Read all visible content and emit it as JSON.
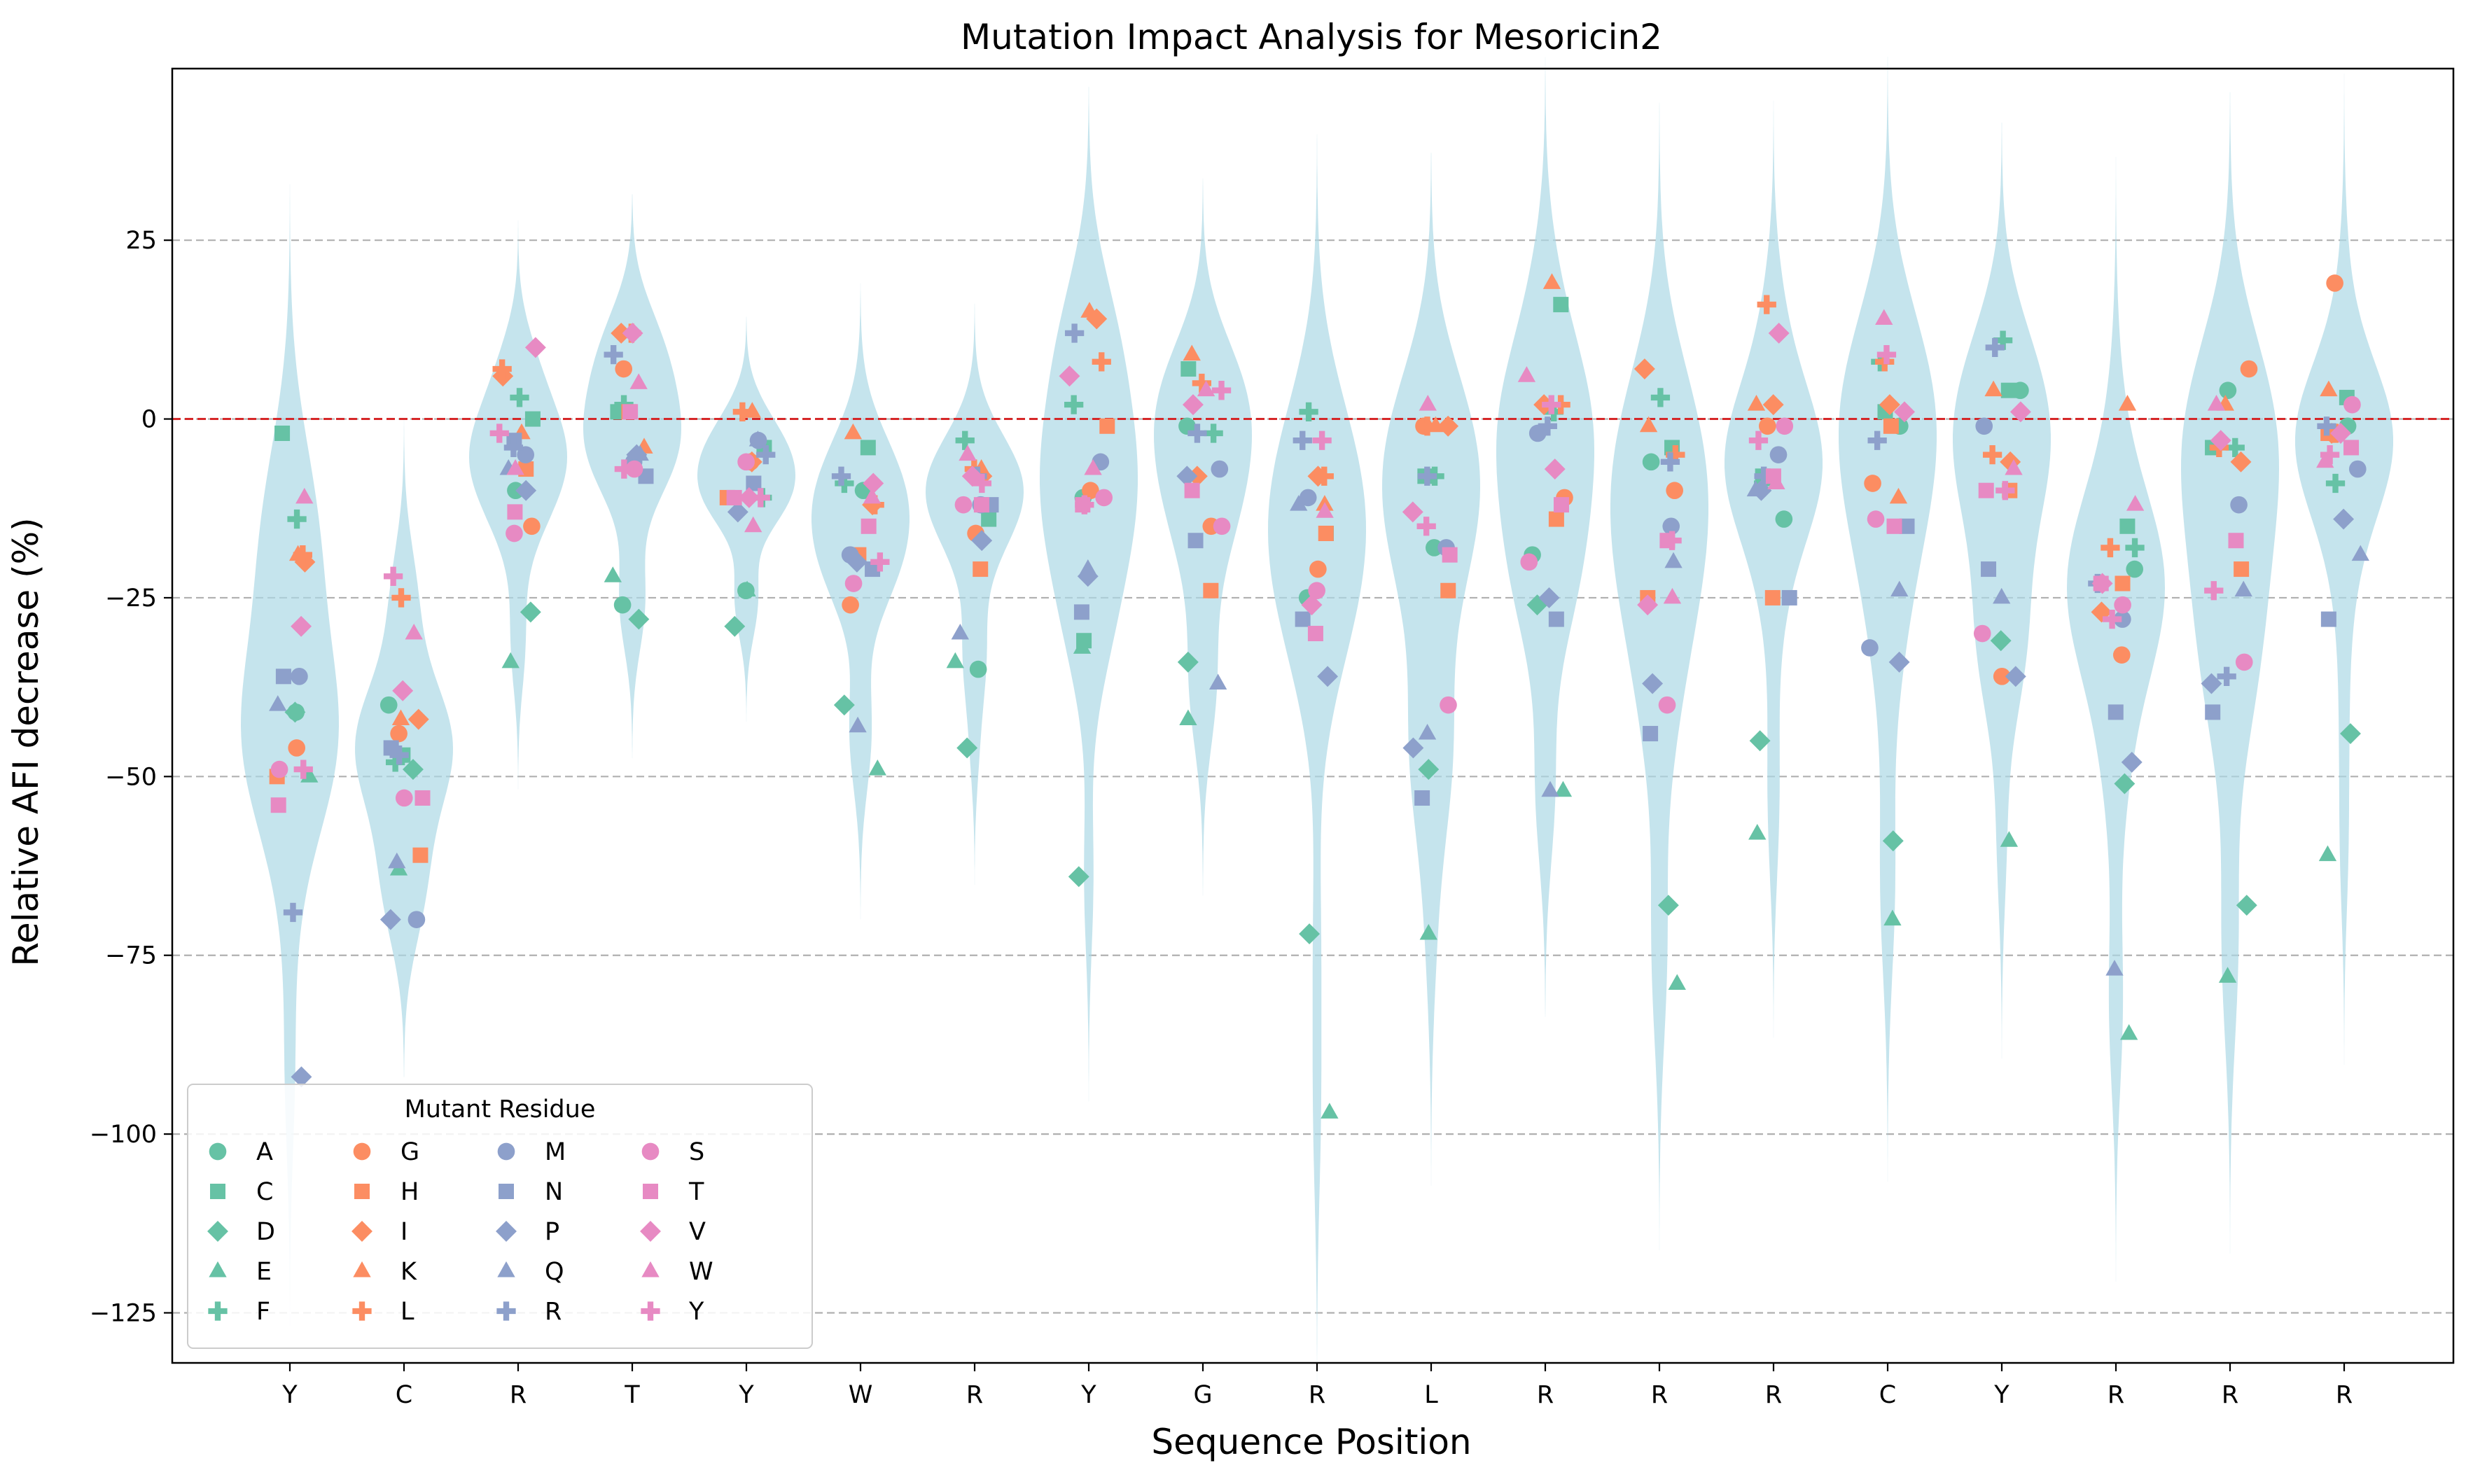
{
  "chart_data": {
    "type": "violin-strip",
    "title": "Mutation Impact Analysis for Mesoricin2",
    "xlabel": "Sequence Position",
    "ylabel": "Relative AFI decrease (%)",
    "ylim": [
      -132,
      49
    ],
    "yticks": [
      25,
      0,
      -25,
      -50,
      -75,
      -100,
      -125
    ],
    "ytick_labels": [
      "25",
      "0",
      "−25",
      "−50",
      "−75",
      "−100",
      "−125"
    ],
    "reference_line": {
      "y": 0,
      "color": "#d62728",
      "style": "dashed"
    },
    "grid": "horizontal dashed",
    "violin_color": "#add8e6",
    "positions": [
      "Y",
      "C",
      "R",
      "T",
      "Y",
      "W",
      "R",
      "Y",
      "G",
      "R",
      "L",
      "R",
      "R",
      "R",
      "C",
      "Y",
      "R",
      "R",
      "R"
    ],
    "residue_order": [
      "A",
      "C",
      "D",
      "E",
      "F",
      "G",
      "H",
      "I",
      "K",
      "L",
      "M",
      "N",
      "P",
      "Q",
      "R",
      "S",
      "T",
      "V",
      "W",
      "Y"
    ],
    "residue_styles": {
      "A": {
        "color": "#66c2a5",
        "marker": "circle"
      },
      "C": {
        "color": "#66c2a5",
        "marker": "square"
      },
      "D": {
        "color": "#66c2a5",
        "marker": "diamond"
      },
      "E": {
        "color": "#66c2a5",
        "marker": "triangle"
      },
      "F": {
        "color": "#66c2a5",
        "marker": "plus"
      },
      "G": {
        "color": "#fc8d62",
        "marker": "circle"
      },
      "H": {
        "color": "#fc8d62",
        "marker": "square"
      },
      "I": {
        "color": "#fc8d62",
        "marker": "diamond"
      },
      "K": {
        "color": "#fc8d62",
        "marker": "triangle"
      },
      "L": {
        "color": "#fc8d62",
        "marker": "plus"
      },
      "M": {
        "color": "#8da0cb",
        "marker": "circle"
      },
      "N": {
        "color": "#8da0cb",
        "marker": "square"
      },
      "P": {
        "color": "#8da0cb",
        "marker": "diamond"
      },
      "Q": {
        "color": "#8da0cb",
        "marker": "triangle"
      },
      "R": {
        "color": "#8da0cb",
        "marker": "plus"
      },
      "S": {
        "color": "#e78ac3",
        "marker": "circle"
      },
      "T": {
        "color": "#e78ac3",
        "marker": "square"
      },
      "V": {
        "color": "#e78ac3",
        "marker": "diamond"
      },
      "W": {
        "color": "#e78ac3",
        "marker": "triangle"
      },
      "Y": {
        "color": "#e78ac3",
        "marker": "plus"
      }
    },
    "values": [
      [
        -41,
        -2,
        -41,
        -50,
        -14,
        -46,
        -50,
        -20,
        -19,
        -19,
        -36,
        -36,
        -92,
        -40,
        -69,
        -49,
        -54,
        -29,
        -11,
        -49
      ],
      [
        -40,
        -47,
        -49,
        -63,
        -48,
        -44,
        -61,
        -42,
        -42,
        -25,
        -70,
        -46,
        -70,
        -62,
        -47,
        -53,
        -53,
        -38,
        -30,
        -22
      ],
      [
        -10,
        0,
        -27,
        -34,
        3,
        -15,
        -7,
        6,
        -2,
        7,
        -5,
        -3,
        -10,
        -7,
        -4,
        -16,
        -13,
        10,
        -7,
        -2
      ],
      [
        -26,
        1,
        -28,
        -22,
        2,
        7,
        1,
        12,
        -4,
        12,
        -6,
        -8,
        -5,
        -5,
        9,
        -7,
        1,
        12,
        5,
        -7
      ],
      [
        -24,
        -4,
        -29,
        -24,
        -11,
        -6,
        -11,
        -6,
        1,
        1,
        -3,
        -9,
        -13,
        -3,
        -5,
        -6,
        -11,
        -11,
        -15,
        -11
      ],
      [
        -10,
        -4,
        -40,
        -49,
        -9,
        -26,
        -19,
        -12,
        -2,
        -12,
        -19,
        -21,
        -20,
        -43,
        -8,
        -23,
        -15,
        -9,
        -11,
        -20
      ],
      [
        -35,
        -14,
        -46,
        -34,
        -3,
        -16,
        -21,
        -8,
        -7,
        -7,
        -12,
        -12,
        -17,
        -30,
        -8,
        -12,
        -12,
        -8,
        -5,
        -9
      ],
      [
        -11,
        -31,
        -64,
        -32,
        2,
        -10,
        -1,
        14,
        15,
        8,
        -6,
        -27,
        -22,
        -21,
        12,
        -11,
        -12,
        6,
        -7,
        -12
      ],
      [
        -1,
        7,
        -34,
        -42,
        -2,
        -15,
        -24,
        -8,
        9,
        5,
        -7,
        -17,
        -8,
        -37,
        -2,
        -15,
        -10,
        2,
        4,
        4
      ],
      [
        -25,
        -16,
        -72,
        -97,
        1,
        -21,
        -16,
        -8,
        -12,
        -8,
        -11,
        -28,
        -36,
        -12,
        -3,
        -24,
        -30,
        -26,
        -13,
        -3
      ],
      [
        -18,
        -8,
        -49,
        -72,
        -8,
        -1,
        -24,
        -1,
        -1,
        -1,
        -18,
        -53,
        -46,
        -44,
        -8,
        -40,
        -19,
        -13,
        2,
        -15
      ],
      [
        -19,
        16,
        -26,
        -52,
        1,
        -11,
        -14,
        2,
        19,
        2,
        -2,
        -28,
        -25,
        -52,
        -1,
        -20,
        -12,
        -7,
        6,
        2
      ],
      [
        -6,
        -4,
        -68,
        -79,
        3,
        -10,
        -25,
        7,
        -1,
        -5,
        -15,
        -44,
        -37,
        -20,
        -6,
        -40,
        -17,
        -26,
        -25,
        -17
      ],
      [
        -14,
        -8,
        -45,
        -58,
        -9,
        -1,
        -25,
        2,
        2,
        16,
        -5,
        -25,
        -10,
        -10,
        -8,
        -1,
        -8,
        12,
        -9,
        -3
      ],
      [
        -1,
        1,
        -59,
        -70,
        8,
        -9,
        -1,
        2,
        -11,
        8,
        -32,
        -15,
        -34,
        -24,
        -3,
        -14,
        -15,
        1,
        14,
        9
      ],
      [
        4,
        4,
        -31,
        -59,
        11,
        -36,
        -10,
        -6,
        4,
        -5,
        -1,
        -21,
        -36,
        -25,
        10,
        -30,
        -10,
        1,
        -7,
        -10
      ],
      [
        -21,
        -15,
        -51,
        -86,
        -18,
        -33,
        -23,
        -27,
        2,
        -18,
        -28,
        -41,
        -48,
        -77,
        -23,
        -26,
        -23,
        -23,
        -12,
        -28
      ],
      [
        4,
        -4,
        -68,
        -78,
        -4,
        7,
        -21,
        -6,
        2,
        -4,
        -12,
        -41,
        -37,
        -24,
        -36,
        -34,
        -17,
        -3,
        2,
        -24
      ],
      [
        -1,
        3,
        -44,
        -61,
        -9,
        19,
        -2,
        -2,
        4,
        -2,
        -7,
        -28,
        -14,
        -19,
        -1,
        2,
        -4,
        -2,
        -6,
        -5
      ]
    ],
    "legend": {
      "title": "Mutant Residue",
      "columns": [
        [
          "A",
          "C",
          "D",
          "E",
          "F"
        ],
        [
          "G",
          "H",
          "I",
          "K",
          "L"
        ],
        [
          "M",
          "N",
          "P",
          "Q",
          "R"
        ],
        [
          "S",
          "T",
          "V",
          "W",
          "Y"
        ]
      ],
      "placement": "bottom-left"
    }
  }
}
